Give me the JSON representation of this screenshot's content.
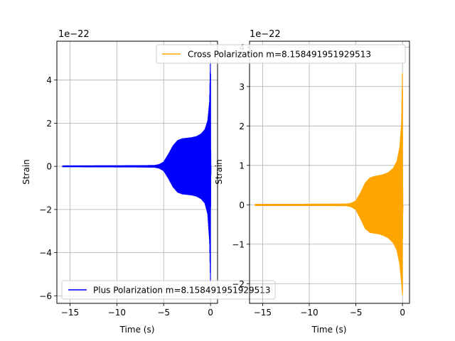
{
  "chart_data": [
    {
      "type": "line",
      "xlabel": "Time (s)",
      "ylabel": "Strain",
      "offset_text": "1e−22",
      "grid": true,
      "legend_location": "lower-left",
      "xlim": [
        -16.4,
        0.75
      ],
      "ylim": [
        -6.35,
        5.8
      ],
      "xticks": [
        -15,
        -10,
        -5,
        0
      ],
      "xtick_labels": [
        "−15",
        "−10",
        "−5",
        "0"
      ],
      "yticks": [
        -6,
        -4,
        -2,
        0,
        2,
        4
      ],
      "ytick_labels": [
        "−6",
        "−4",
        "−2",
        "0",
        "2",
        "4"
      ],
      "series": [
        {
          "name": "Plus Polarization m=8.158491951929513",
          "color": "#0000ff",
          "x_range": [
            -15.8,
            0.05
          ],
          "envelope": [
            [
              -15.8,
              0.02
            ],
            [
              -8,
              0.03
            ],
            [
              -6,
              0.04
            ],
            [
              -5.5,
              0.08
            ],
            [
              -5,
              0.2
            ],
            [
              -4.5,
              0.55
            ],
            [
              -4,
              0.95
            ],
            [
              -3.5,
              1.2
            ],
            [
              -3,
              1.28
            ],
            [
              -2.5,
              1.3
            ],
            [
              -2,
              1.33
            ],
            [
              -1.5,
              1.38
            ],
            [
              -1,
              1.5
            ],
            [
              -0.6,
              1.7
            ],
            [
              -0.3,
              2.1
            ],
            [
              -0.1,
              3.0
            ],
            [
              0.0,
              5.3
            ],
            [
              0.02,
              1.0
            ],
            [
              0.05,
              0.0
            ]
          ],
          "envelope_lower": [
            [
              -15.8,
              -0.02
            ],
            [
              -8,
              -0.03
            ],
            [
              -6,
              -0.04
            ],
            [
              -5.5,
              -0.08
            ],
            [
              -5,
              -0.2
            ],
            [
              -4.5,
              -0.55
            ],
            [
              -4,
              -0.95
            ],
            [
              -3.5,
              -1.2
            ],
            [
              -3,
              -1.28
            ],
            [
              -2.5,
              -1.3
            ],
            [
              -2,
              -1.33
            ],
            [
              -1.5,
              -1.38
            ],
            [
              -1,
              -1.5
            ],
            [
              -0.6,
              -1.7
            ],
            [
              -0.3,
              -2.2
            ],
            [
              -0.1,
              -3.5
            ],
            [
              0.0,
              -5.5
            ],
            [
              0.02,
              -1.0
            ],
            [
              0.05,
              0.0
            ]
          ]
        }
      ]
    },
    {
      "type": "line",
      "xlabel": "Time (s)",
      "ylabel": "Strain",
      "offset_text": "1e−22",
      "grid": true,
      "legend_location": "upper-right",
      "xlim": [
        -16.4,
        0.75
      ],
      "ylim": [
        -2.5,
        4.15
      ],
      "xticks": [
        -15,
        -10,
        -5,
        0
      ],
      "xtick_labels": [
        "−15",
        "−10",
        "−5",
        "0"
      ],
      "yticks": [
        -2,
        -1,
        0,
        1,
        2,
        3,
        4
      ],
      "ytick_labels": [
        "−2",
        "−1",
        "0",
        "1",
        "2",
        "3",
        "4"
      ],
      "series": [
        {
          "name": "Cross Polarization m=8.158491951929513",
          "color": "#ffa500",
          "x_range": [
            -15.8,
            0.05
          ],
          "envelope": [
            [
              -15.8,
              0.01
            ],
            [
              -8,
              0.015
            ],
            [
              -6,
              0.02
            ],
            [
              -5.5,
              0.04
            ],
            [
              -5,
              0.1
            ],
            [
              -4.5,
              0.3
            ],
            [
              -4,
              0.55
            ],
            [
              -3.5,
              0.68
            ],
            [
              -3,
              0.72
            ],
            [
              -2.5,
              0.74
            ],
            [
              -2,
              0.77
            ],
            [
              -1.5,
              0.82
            ],
            [
              -1,
              0.92
            ],
            [
              -0.6,
              1.1
            ],
            [
              -0.3,
              1.45
            ],
            [
              -0.1,
              2.1
            ],
            [
              0.0,
              3.6
            ],
            [
              0.02,
              0.6
            ],
            [
              0.05,
              0.0
            ]
          ],
          "envelope_lower": [
            [
              -15.8,
              -0.02
            ],
            [
              -8,
              -0.02
            ],
            [
              -6,
              -0.025
            ],
            [
              -5.5,
              -0.05
            ],
            [
              -5,
              -0.12
            ],
            [
              -4.5,
              -0.35
            ],
            [
              -4,
              -0.6
            ],
            [
              -3.5,
              -0.7
            ],
            [
              -3,
              -0.72
            ],
            [
              -2.5,
              -0.74
            ],
            [
              -2,
              -0.78
            ],
            [
              -1.5,
              -0.84
            ],
            [
              -1,
              -0.96
            ],
            [
              -0.6,
              -1.15
            ],
            [
              -0.3,
              -1.5
            ],
            [
              -0.1,
              -2.0
            ],
            [
              0.0,
              -2.3
            ],
            [
              0.02,
              -0.5
            ],
            [
              0.05,
              0.0
            ]
          ]
        }
      ]
    }
  ]
}
